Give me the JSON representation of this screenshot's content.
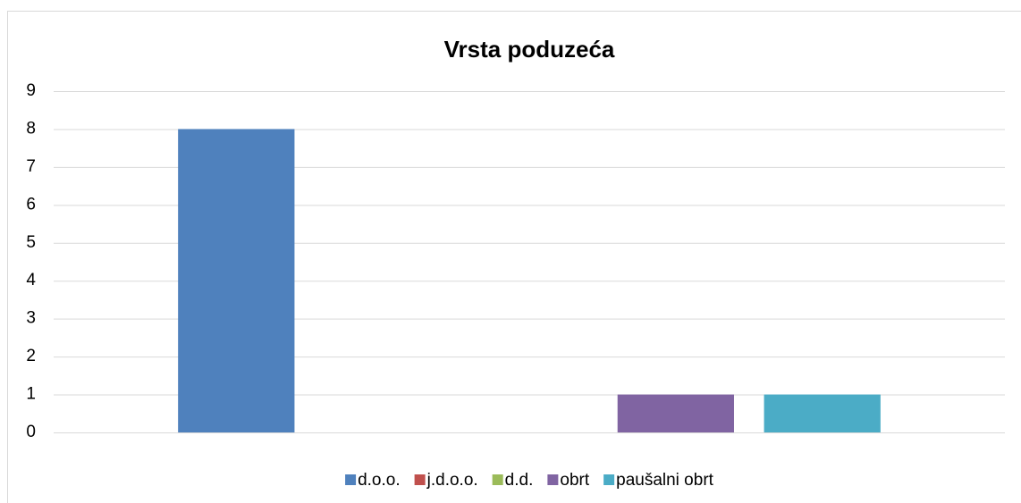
{
  "chart_data": {
    "type": "bar",
    "title": "Vrsta poduzeća",
    "categories": [
      null
    ],
    "series": [
      {
        "name": "d.o.o.",
        "color": "#4f81bd",
        "values": [
          8
        ]
      },
      {
        "name": "j.d.o.o.",
        "color": "#c0504d",
        "values": [
          0
        ]
      },
      {
        "name": "d.d.",
        "color": "#9bbb59",
        "values": [
          0
        ]
      },
      {
        "name": "obrt",
        "color": "#8064a2",
        "values": [
          1
        ]
      },
      {
        "name": "paušalni obrt",
        "color": "#4bacc6",
        "values": [
          1
        ]
      }
    ],
    "ylim": [
      0,
      9
    ],
    "yticks": [
      0,
      1,
      2,
      3,
      4,
      5,
      6,
      7,
      8,
      9
    ],
    "grid": true,
    "legend": "bottom"
  }
}
